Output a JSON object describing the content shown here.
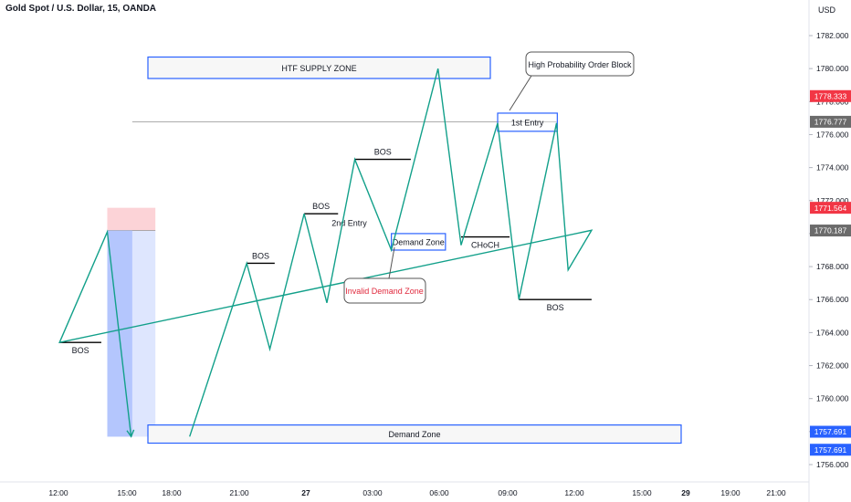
{
  "header": {
    "symbol_title": "Gold Spot / U.S. Dollar, 15, OANDA",
    "currency": "USD"
  },
  "colors": {
    "line": "#12a08a",
    "zone_border": "#2962ff",
    "zone_fill": "#f7f7f7",
    "level": "#000000",
    "invalid_text": "#e0283c",
    "target_fill": "#d3defd",
    "target_fill_dark": "#a9befc",
    "stop_fill": "#fcd1d5",
    "badge_red": "#f23645",
    "badge_gray": "#6b6b6b",
    "badge_blue": "#2962ff",
    "axis_text": "#131722"
  },
  "chart_data": {
    "type": "line",
    "title": "Gold Spot / U.S. Dollar, 15, OANDA",
    "xlabel": "",
    "ylabel": "",
    "ylim": [
      1755.5,
      1783.5
    ],
    "x_ticks": [
      "12:00",
      "15:00",
      "18:00",
      "21:00",
      "27",
      "03:00",
      "06:00",
      "09:00",
      "12:00",
      "15:00",
      "29",
      "19:00",
      "21:00"
    ],
    "y_ticks": [
      1756.0,
      1758.0,
      1760.0,
      1762.0,
      1764.0,
      1766.0,
      1768.0,
      1770.0,
      1772.0,
      1774.0,
      1776.0,
      1778.0,
      1780.0,
      1782.0
    ],
    "grid": false,
    "price_path": [
      {
        "x": "17:52",
        "y": 1757.7
      },
      {
        "x": "20:25",
        "y": 1768.2
      },
      {
        "x": "21:27",
        "y": 1763.0
      },
      {
        "x": "22:59",
        "y": 1771.2
      },
      {
        "x": "00:00",
        "y": 1765.8
      },
      {
        "x": "01:15",
        "y": 1774.5
      },
      {
        "x": "02:53",
        "y": 1769.0
      },
      {
        "x": "04:58",
        "y": 1780.0
      },
      {
        "x": "06:00",
        "y": 1769.3
      },
      {
        "x": "07:38",
        "y": 1776.7
      },
      {
        "x": "08:35",
        "y": 1766.0
      },
      {
        "x": "10:16",
        "y": 1776.7
      },
      {
        "x": "10:47",
        "y": 1767.8
      },
      {
        "x": "11:50",
        "y": 1770.2
      },
      {
        "x": "12:03",
        "y": 1763.4
      },
      {
        "x": "14:11",
        "y": 1770.1
      },
      {
        "x": "15:15",
        "y": 1757.7
      }
    ],
    "levels": [
      {
        "label": "BOS",
        "price": 1768.2,
        "from": "20:25",
        "to": "21:40",
        "label_pos": "above"
      },
      {
        "label": "BOS",
        "price": 1771.2,
        "from": "22:59",
        "to": "00:30",
        "label_pos": "above"
      },
      {
        "label": "BOS",
        "price": 1774.5,
        "from": "01:15",
        "to": "03:45",
        "label_pos": "above"
      },
      {
        "label": "CHoCH",
        "price": 1769.8,
        "from": "06:00",
        "to": "08:10",
        "label_pos": "below"
      },
      {
        "label": "BOS",
        "price": 1766.0,
        "from": "08:35",
        "to": "11:50",
        "label_pos": "below"
      },
      {
        "label": "BOS",
        "price": 1763.4,
        "from": "12:03",
        "to": "13:55",
        "label_pos": "below"
      }
    ],
    "zones": [
      {
        "label": "HTF SUPPLY ZONE",
        "from": "17:35",
        "to": "09:10",
        "top": 1780.7,
        "bottom": 1779.4
      },
      {
        "label": "Demand Zone",
        "from": "02:53",
        "to": "05:18",
        "top": 1770.0,
        "bottom": 1769.0
      },
      {
        "label": "1st Entry",
        "from": "07:38",
        "to": "10:18",
        "top": 1777.3,
        "bottom": 1776.2
      },
      {
        "label": "2nd Entry",
        "from": "11:50",
        "to": "14:10",
        "top": 1771.2,
        "bottom": 1770.1
      },
      {
        "label": "Demand Zone",
        "from": "17:35",
        "to": "16:20",
        "top": 1758.4,
        "bottom": 1757.3
      }
    ],
    "callouts": [
      {
        "label": "High Probability Order Block",
        "color": "text"
      },
      {
        "label": "Invalid Demand Zone",
        "color": "invalid"
      }
    ],
    "positions": [
      {
        "name": "1st Entry",
        "from": "10:16",
        "to": "15:18",
        "entry": 1776.777,
        "stop": 1778.333,
        "target": 1757.691
      },
      {
        "name": "2nd Entry",
        "from": "14:11",
        "to": "16:20",
        "entry": 1770.187,
        "stop": 1771.564,
        "target": 1757.691
      }
    ],
    "price_labels": [
      {
        "value": "1778.333",
        "price": 1778.333,
        "style": "red"
      },
      {
        "value": "1776.777",
        "price": 1776.777,
        "style": "gray"
      },
      {
        "value": "1771.564",
        "price": 1771.564,
        "style": "red"
      },
      {
        "value": "1770.187",
        "price": 1770.187,
        "style": "gray"
      },
      {
        "value": "1757.691",
        "price": 1757.99,
        "style": "blue"
      },
      {
        "value": "1757.691",
        "price": 1756.9,
        "style": "blue"
      }
    ]
  }
}
